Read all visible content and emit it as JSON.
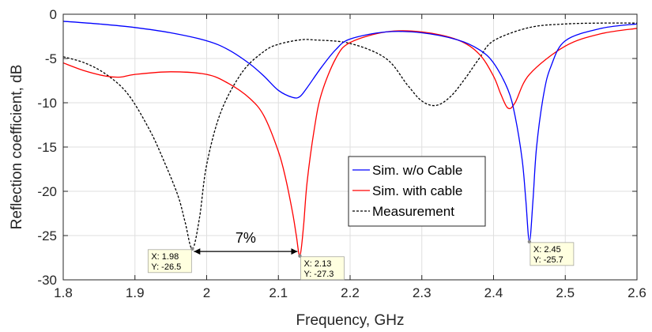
{
  "chart_data": {
    "type": "line",
    "xlabel": "Frequency, GHz",
    "ylabel": "Reflection coefficient, dB",
    "xlim": [
      1.8,
      2.6
    ],
    "ylim": [
      -30,
      0
    ],
    "xticks": [
      "1.8",
      "1.9",
      "2",
      "2.1",
      "2.2",
      "2.3",
      "2.4",
      "2.5",
      "2.6"
    ],
    "yticks": [
      "-30",
      "-25",
      "-20",
      "-15",
      "-10",
      "-5",
      "0"
    ],
    "grid": true,
    "legend_position": "center-right",
    "series": [
      {
        "name": "Sim. w/o Cable",
        "color": "#0000ff",
        "style": "solid",
        "x": [
          1.8,
          1.85,
          1.9,
          1.95,
          2.0,
          2.03,
          2.06,
          2.08,
          2.1,
          2.12,
          2.13,
          2.14,
          2.16,
          2.18,
          2.2,
          2.25,
          2.3,
          2.35,
          2.38,
          2.4,
          2.42,
          2.43,
          2.44,
          2.445,
          2.45,
          2.455,
          2.46,
          2.47,
          2.48,
          2.5,
          2.55,
          2.6
        ],
        "y": [
          -0.8,
          -1.1,
          -1.5,
          -2.1,
          -3.0,
          -4.0,
          -5.6,
          -7.0,
          -8.6,
          -9.4,
          -9.3,
          -8.3,
          -6.0,
          -4.0,
          -2.8,
          -2.0,
          -2.1,
          -2.9,
          -4.0,
          -5.5,
          -8.5,
          -11.5,
          -16.5,
          -21.0,
          -25.7,
          -21.0,
          -15.0,
          -9.0,
          -5.9,
          -3.0,
          -1.6,
          -1.1
        ]
      },
      {
        "name": "Sim. with cable",
        "color": "#ff0000",
        "style": "solid",
        "x": [
          1.8,
          1.83,
          1.86,
          1.88,
          1.9,
          1.95,
          2.0,
          2.03,
          2.06,
          2.08,
          2.1,
          2.11,
          2.12,
          2.125,
          2.13,
          2.135,
          2.14,
          2.15,
          2.16,
          2.18,
          2.2,
          2.25,
          2.3,
          2.35,
          2.38,
          2.4,
          2.41,
          2.42,
          2.43,
          2.45,
          2.5,
          2.55,
          2.6
        ],
        "y": [
          -5.5,
          -6.4,
          -7.0,
          -7.1,
          -6.8,
          -6.5,
          -6.8,
          -7.8,
          -9.5,
          -11.5,
          -15.5,
          -18.5,
          -22.5,
          -25.0,
          -27.3,
          -24.0,
          -19.0,
          -13.0,
          -9.0,
          -5.0,
          -3.2,
          -2.0,
          -2.0,
          -2.9,
          -4.5,
          -7.0,
          -9.0,
          -10.6,
          -10.0,
          -6.8,
          -3.6,
          -2.2,
          -1.6
        ]
      },
      {
        "name": "Measurement",
        "color": "#000000",
        "style": "dashed",
        "x": [
          1.8,
          1.83,
          1.86,
          1.89,
          1.92,
          1.94,
          1.96,
          1.97,
          1.98,
          1.99,
          2.0,
          2.02,
          2.05,
          2.08,
          2.1,
          2.13,
          2.15,
          2.2,
          2.25,
          2.28,
          2.3,
          2.32,
          2.34,
          2.36,
          2.38,
          2.4,
          2.45,
          2.5,
          2.55,
          2.6
        ],
        "y": [
          -4.8,
          -5.5,
          -6.8,
          -9.0,
          -13.0,
          -16.5,
          -20.5,
          -23.5,
          -26.5,
          -23.0,
          -17.0,
          -11.0,
          -6.5,
          -4.2,
          -3.4,
          -2.9,
          -2.9,
          -3.3,
          -5.0,
          -8.0,
          -9.8,
          -10.3,
          -9.3,
          -7.3,
          -5.0,
          -3.0,
          -1.5,
          -1.1,
          -1.0,
          -1.0
        ]
      }
    ],
    "datatips": [
      {
        "x_label": "X: 1.98",
        "y_label": "Y: -26.5",
        "x": 1.98,
        "y": -26.5,
        "side": "left"
      },
      {
        "x_label": "X: 2.13",
        "y_label": "Y: -27.3",
        "x": 2.13,
        "y": -27.3,
        "side": "right"
      },
      {
        "x_label": "X: 2.45",
        "y_label": "Y: -25.7",
        "x": 2.45,
        "y": -25.7,
        "side": "right"
      }
    ],
    "annotation": {
      "text": "7%",
      "x_from": 1.98,
      "x_to": 2.13,
      "y": -26.8
    }
  }
}
